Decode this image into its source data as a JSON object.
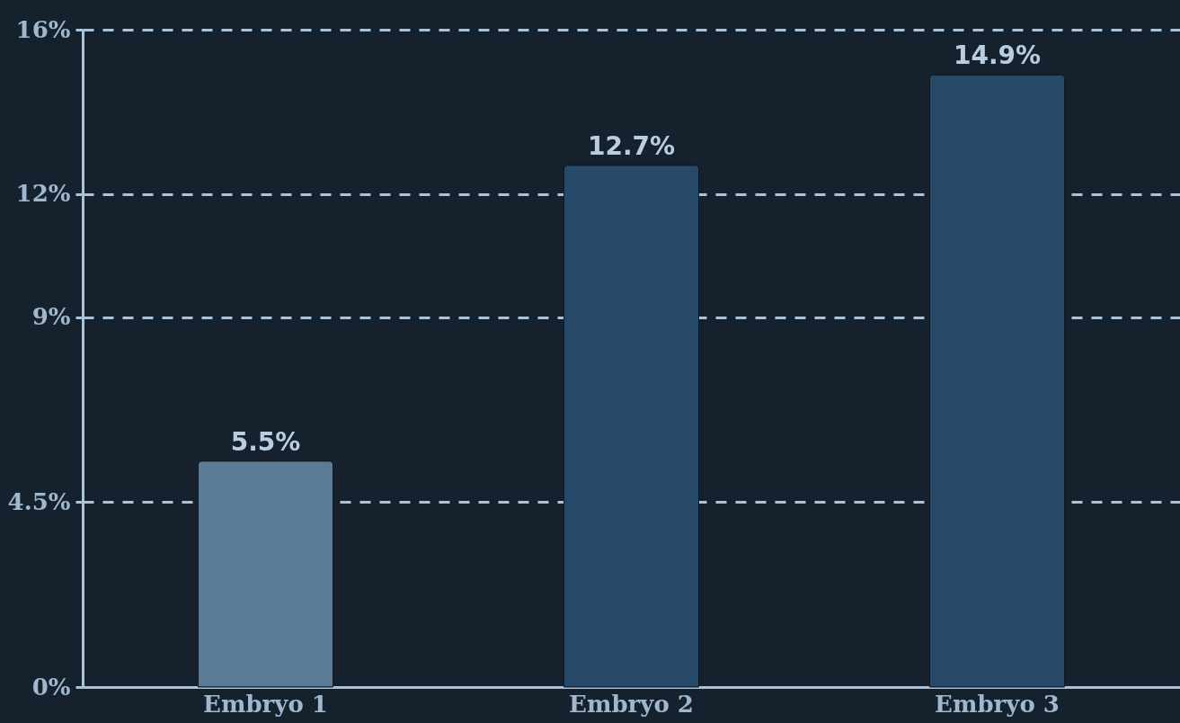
{
  "chart_data": {
    "type": "bar",
    "categories": [
      "Embryo 1",
      "Embryo 2",
      "Embryo 3"
    ],
    "values": [
      5.5,
      12.7,
      14.9
    ],
    "colors": [
      "#5a7a96",
      "#274a68",
      "#274a68"
    ],
    "value_labels": [
      "5.5%",
      "12.7%",
      "14.9%"
    ],
    "ylim": [
      0,
      16
    ],
    "yticks": [
      {
        "value": 0,
        "label": "0%"
      },
      {
        "value": 4.5,
        "label": "4.5%"
      },
      {
        "value": 9,
        "label": "9%"
      },
      {
        "value": 12,
        "label": "12%"
      },
      {
        "value": 16,
        "label": "16%"
      }
    ],
    "grid": "y",
    "line_style": "dashed"
  }
}
